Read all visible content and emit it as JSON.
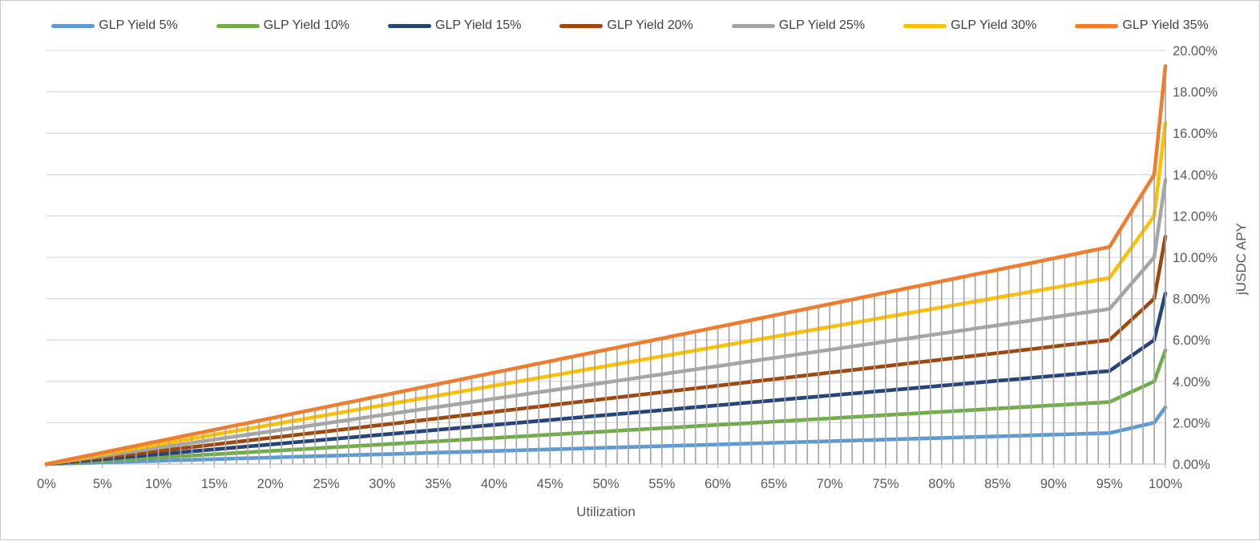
{
  "chart_data": {
    "type": "line",
    "title": "",
    "xlabel": "Utilization",
    "ylabel": "jUSDC APY",
    "xlim": [
      0,
      100
    ],
    "ylim": [
      0,
      20
    ],
    "x_tick_step_pct": 5,
    "y_tick_step_pct": 2,
    "x_tick_labels": [
      "0%",
      "5%",
      "10%",
      "15%",
      "20%",
      "25%",
      "30%",
      "35%",
      "40%",
      "45%",
      "50%",
      "55%",
      "60%",
      "65%",
      "70%",
      "75%",
      "80%",
      "85%",
      "90%",
      "95%",
      "100%"
    ],
    "y_tick_labels": [
      "0.00%",
      "2.00%",
      "4.00%",
      "6.00%",
      "8.00%",
      "10.00%",
      "12.00%",
      "14.00%",
      "16.00%",
      "18.00%",
      "20.00%"
    ],
    "y_axis_side": "right",
    "legend_position": "top",
    "grid": "horizontal-major",
    "x_data_step_pct": 1,
    "breakpoints_x_pct": [
      0,
      95,
      99,
      100
    ],
    "series": [
      {
        "name": "GLP Yield 5%",
        "slug": "glp-yield-5",
        "color": "#5B9BD5",
        "values_at_breakpoints_pct": [
          0,
          1.5,
          2.0,
          2.75
        ]
      },
      {
        "name": "GLP Yield 10%",
        "slug": "glp-yield-10",
        "color": "#70AD47",
        "values_at_breakpoints_pct": [
          0,
          3.0,
          4.0,
          5.5
        ]
      },
      {
        "name": "GLP Yield 15%",
        "slug": "glp-yield-15",
        "color": "#264478",
        "values_at_breakpoints_pct": [
          0,
          4.5,
          6.0,
          8.25
        ]
      },
      {
        "name": "GLP Yield 20%",
        "slug": "glp-yield-20",
        "color": "#9E480E",
        "values_at_breakpoints_pct": [
          0,
          6.0,
          8.0,
          11.0
        ]
      },
      {
        "name": "GLP Yield 25%",
        "slug": "glp-yield-25",
        "color": "#A5A5A5",
        "values_at_breakpoints_pct": [
          0,
          7.5,
          10.0,
          13.75
        ]
      },
      {
        "name": "GLP Yield 30%",
        "slug": "glp-yield-30",
        "color": "#FFC000",
        "values_at_breakpoints_pct": [
          0,
          9.0,
          12.0,
          16.5
        ]
      },
      {
        "name": "GLP Yield 35%",
        "slug": "glp-yield-35",
        "color": "#ED7D31",
        "values_at_breakpoints_pct": [
          0,
          10.5,
          14.0,
          19.25
        ]
      }
    ],
    "droplines": {
      "every_pct": 1,
      "top_series": "GLP Yield 35%",
      "color": "#A6A6A6"
    }
  },
  "style": {
    "gridline_color": "#D9D9D9",
    "dropline_color": "#A6A6A6",
    "axis_line_color": "#BFBFBF",
    "tick_text_color": "#595959",
    "legend_text_color": "#404040",
    "background": "#FFFFFF",
    "frame_border_color": "#C9C9C9"
  }
}
